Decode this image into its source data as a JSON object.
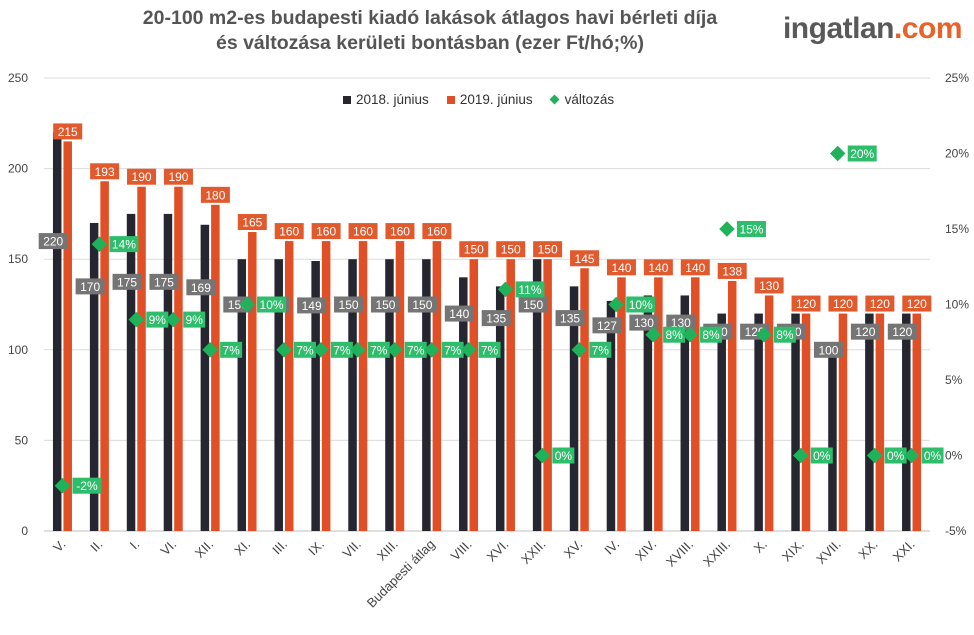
{
  "title_line1": "20-100 m2-es budapesti kiadó lakások átlagos havi bérleti díja",
  "title_line2": "és változása kerületi bontásban (ezer Ft/hó;%)",
  "logo": {
    "part1": "ingatlan",
    "part2": ".com"
  },
  "colors": {
    "s2018": "#262631",
    "s2019": "#e04f25",
    "change": "#1fb25a"
  },
  "chart_data": {
    "type": "bar",
    "title": "20-100 m2-es budapesti kiadó lakások átlagos havi bérleti díja és változása kerületi bontásban (ezer Ft/hó;%)",
    "categories": [
      "V.",
      "II.",
      "I.",
      "VI.",
      "XII.",
      "XI.",
      "III.",
      "IX.",
      "VII.",
      "XIII.",
      "Budapesti átlag",
      "VIII.",
      "XVI.",
      "XXII.",
      "XV.",
      "IV.",
      "XIV.",
      "XVIII.",
      "XXIII.",
      "X.",
      "XIX.",
      "XVII.",
      "XX.",
      "XXI."
    ],
    "series": [
      {
        "name": "2018. június",
        "axis": "left",
        "values": [
          220,
          170,
          175,
          175,
          169,
          150,
          150,
          149,
          150,
          150,
          150,
          140,
          135,
          150,
          135,
          127,
          130,
          130,
          120,
          120,
          120,
          100,
          120,
          120
        ]
      },
      {
        "name": "2019. június",
        "axis": "left",
        "values": [
          215,
          193,
          190,
          190,
          180,
          165,
          160,
          160,
          160,
          160,
          160,
          150,
          150,
          150,
          145,
          140,
          140,
          140,
          138,
          130,
          120,
          120,
          120,
          120
        ]
      },
      {
        "name": "változás",
        "axis": "right",
        "type": "scatter",
        "values": [
          -2,
          14,
          9,
          9,
          7,
          10,
          7,
          7,
          7,
          7,
          7,
          7,
          11,
          0,
          7,
          10,
          8,
          8,
          15,
          8,
          0,
          20,
          0,
          0
        ],
        "labels": [
          "-2%",
          "14%",
          "9%",
          "9%",
          "7%",
          "10%",
          "7%",
          "7%",
          "7%",
          "7%",
          "7%",
          "7%",
          "11%",
          "0%",
          "7%",
          "10%",
          "8%",
          "8%",
          "15%",
          "8%",
          "0%",
          "20%",
          "0%",
          "0%"
        ]
      }
    ],
    "y_left": {
      "ylim": [
        0,
        250
      ],
      "ticks": [
        "0",
        "50",
        "100",
        "150",
        "200",
        "250"
      ]
    },
    "y_right": {
      "ylim": [
        -5,
        25
      ],
      "ticks": [
        "-5%",
        "0%",
        "5%",
        "10%",
        "15%",
        "20%",
        "25%"
      ]
    },
    "grid": true,
    "legend": "top-center"
  }
}
